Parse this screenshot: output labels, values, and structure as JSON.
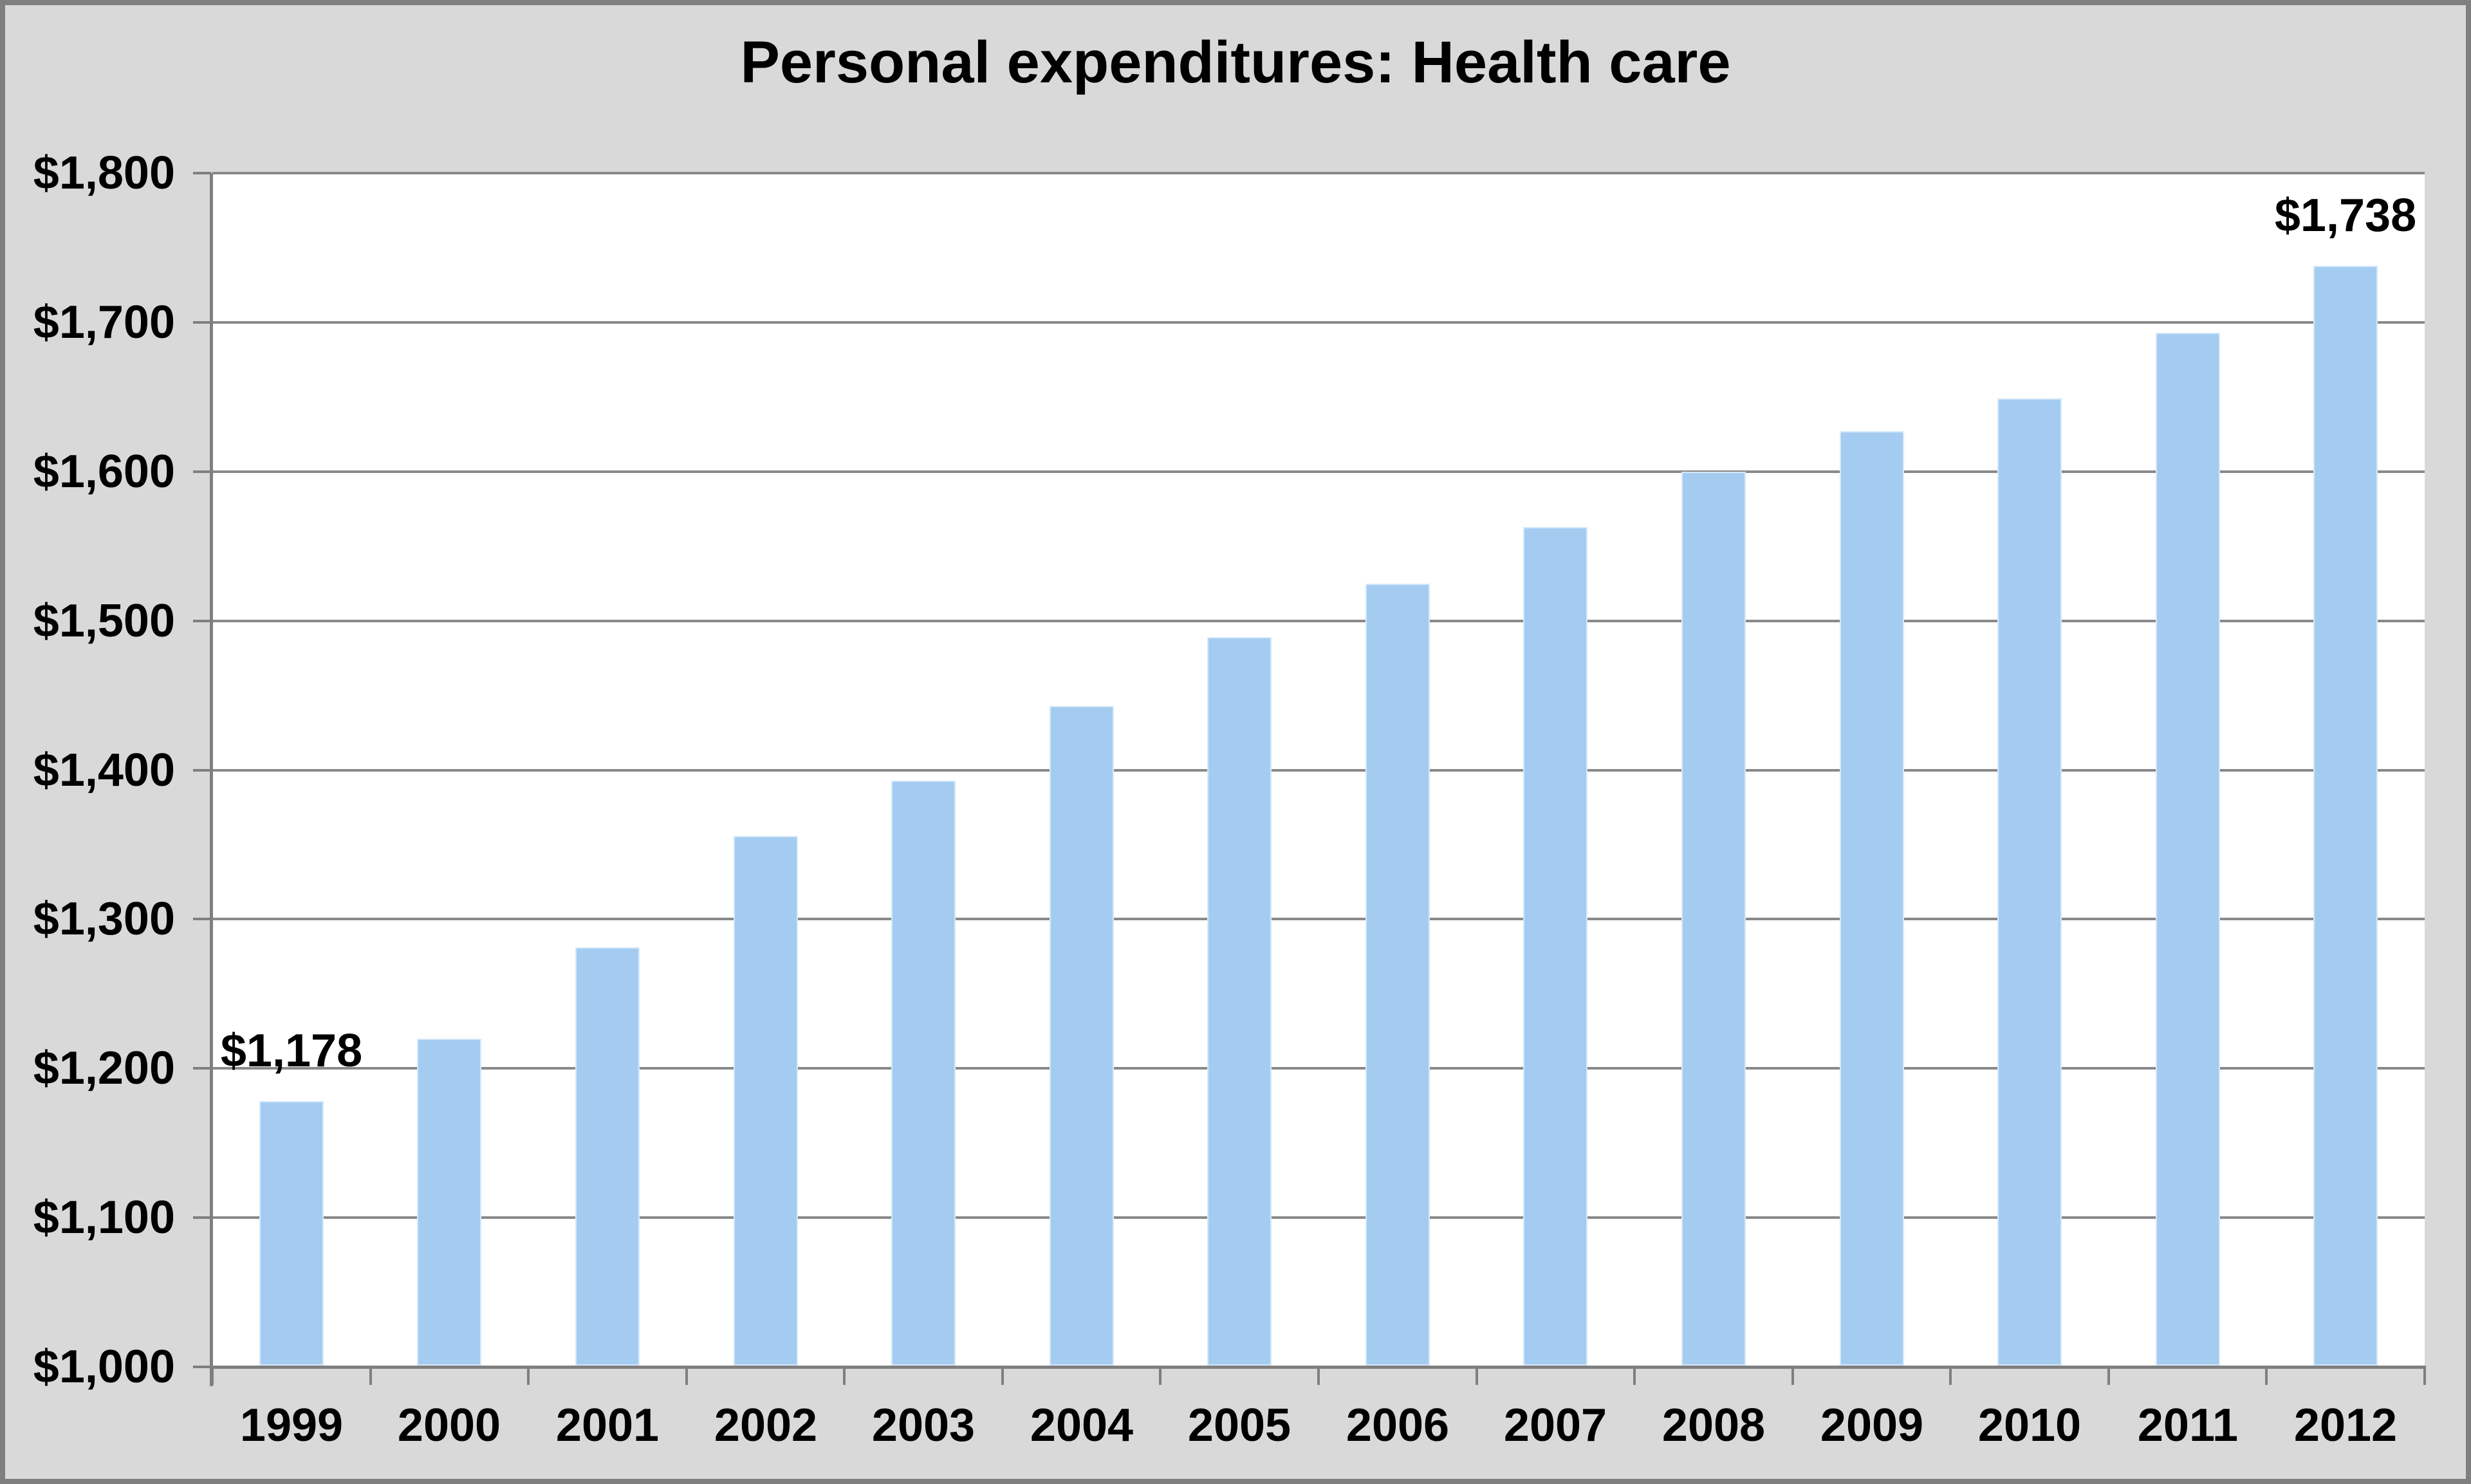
{
  "chart_data": {
    "type": "bar",
    "title": "Personal expenditures: Health care",
    "categories": [
      "1999",
      "2000",
      "2001",
      "2002",
      "2003",
      "2004",
      "2005",
      "2006",
      "2007",
      "2008",
      "2009",
      "2010",
      "2011",
      "2012"
    ],
    "values": [
      1178,
      1220,
      1281,
      1356,
      1393,
      1443,
      1489,
      1525,
      1563,
      1600,
      1627,
      1649,
      1693,
      1738
    ],
    "point_labels": [
      "$1,178",
      "",
      "",
      "",
      "",
      "",
      "",
      "",
      "",
      "",
      "",
      "",
      "",
      "$1,738"
    ],
    "xlabel": "",
    "ylabel": "",
    "ylim": [
      1000,
      1800
    ],
    "y_tick_values": [
      1000,
      1100,
      1200,
      1300,
      1400,
      1500,
      1600,
      1700,
      1800
    ],
    "y_tick_labels": [
      "$1,000",
      "$1,100",
      "$1,200",
      "$1,300",
      "$1,400",
      "$1,500",
      "$1,600",
      "$1,700",
      "$1,800"
    ],
    "grid": true,
    "legend": false,
    "colors": {
      "bar_fill": "#A4CCF1",
      "plot_background": "#FFFFFF",
      "chart_background": "#D9D9D9",
      "gridline": "#898989",
      "axis_line": "#7F7F7F",
      "frame_border": "#7F7F7F",
      "text": "#000000"
    }
  }
}
